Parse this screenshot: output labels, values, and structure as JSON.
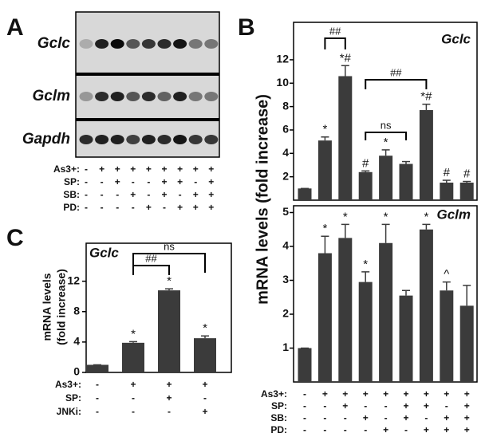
{
  "blot": {
    "panel": "A",
    "rows": [
      "Gclc",
      "Gclm",
      "Gapdh"
    ],
    "condition_rows": [
      {
        "label": "As3+:",
        "signs": [
          "-",
          "+",
          "+",
          "+",
          "+",
          "+",
          "+",
          "+",
          "+"
        ]
      },
      {
        "label": "SP:",
        "signs": [
          "-",
          "-",
          "+",
          "-",
          "-",
          "+",
          "+",
          "-",
          "+"
        ]
      },
      {
        "label": "SB:",
        "signs": [
          "-",
          "-",
          "-",
          "+",
          "-",
          "+",
          "-",
          "+",
          "+"
        ]
      },
      {
        "label": "PD:",
        "signs": [
          "-",
          "-",
          "-",
          "-",
          "+",
          "-",
          "+",
          "+",
          "+"
        ]
      }
    ]
  },
  "chart_data": [
    {
      "type": "bar",
      "panel": "B",
      "title": "Gclc",
      "ylabel": "mRNA levels (fold increase)",
      "values": [
        1,
        5.1,
        10.6,
        2.4,
        3.8,
        3.1,
        7.7,
        1.5,
        1.5
      ],
      "errors": [
        0,
        0.3,
        0.9,
        0.1,
        0.5,
        0.2,
        0.5,
        0.2,
        0.1
      ],
      "annotations": [
        null,
        "*",
        "*#",
        "#",
        "*",
        null,
        "*#",
        "#",
        "#"
      ],
      "brackets": [
        "##",
        "ns",
        "##"
      ],
      "ylim": [
        0,
        15.2
      ],
      "yticks": [
        2,
        4,
        6,
        8,
        10,
        12
      ],
      "color": "#3b3b3b"
    },
    {
      "type": "bar",
      "title": "Gclm",
      "values": [
        1,
        3.8,
        4.25,
        2.95,
        4.1,
        2.55,
        4.5,
        2.7,
        2.25
      ],
      "errors": [
        0,
        0.5,
        0.4,
        0.3,
        0.55,
        0.15,
        0.15,
        0.25,
        0.6
      ],
      "annotations": [
        null,
        "*",
        "*",
        "*",
        "*",
        null,
        "*",
        "^",
        null
      ],
      "ylim": [
        0,
        5.2
      ],
      "yticks": [
        1,
        2,
        3,
        4,
        5
      ],
      "color": "#3b3b3b",
      "condition_rows": [
        {
          "label": "As3+:",
          "signs": [
            "-",
            "+",
            "+",
            "+",
            "+",
            "+",
            "+",
            "+",
            "+"
          ]
        },
        {
          "label": "SP:",
          "signs": [
            "-",
            "-",
            "+",
            "-",
            "-",
            "+",
            "+",
            "-",
            "+"
          ]
        },
        {
          "label": "SB:",
          "signs": [
            "-",
            "-",
            "-",
            "+",
            "-",
            "+",
            "-",
            "+",
            "+"
          ]
        },
        {
          "label": "PD:",
          "signs": [
            "-",
            "-",
            "-",
            "-",
            "+",
            "-",
            "+",
            "+",
            "+"
          ]
        }
      ]
    },
    {
      "type": "bar",
      "panel": "C",
      "title": "Gclc",
      "ylabel": [
        "mRNA levels",
        "(fold increase)"
      ],
      "values": [
        1,
        3.9,
        10.8,
        4.5
      ],
      "errors": [
        0,
        0.15,
        0.2,
        0.3
      ],
      "annotations": [
        null,
        "*",
        "*",
        "*"
      ],
      "brackets": [
        "##",
        "ns"
      ],
      "ylim": [
        0,
        17
      ],
      "yticks": [
        0,
        4,
        8,
        12
      ],
      "color": "#3b3b3b",
      "condition_rows": [
        {
          "label": "As3+:",
          "signs": [
            "-",
            "+",
            "+",
            "+"
          ]
        },
        {
          "label": "SP:",
          "signs": [
            "-",
            "-",
            "+",
            "-"
          ]
        },
        {
          "label": "JNKi:",
          "signs": [
            "-",
            "-",
            "-",
            "+"
          ]
        }
      ]
    }
  ]
}
